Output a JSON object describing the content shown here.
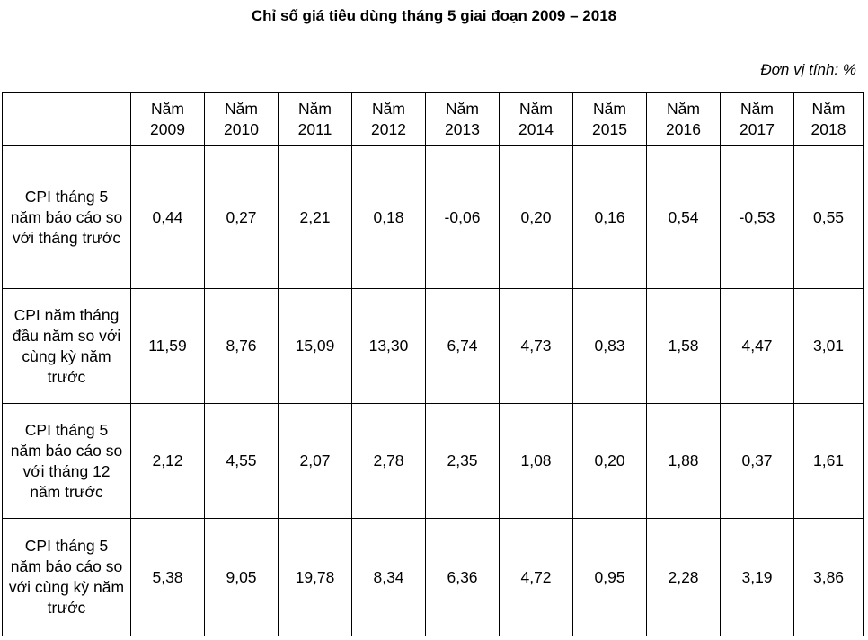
{
  "title": "Chỉ số giá tiêu dùng tháng 5 giai đoạn 2009 – 2018",
  "unit_note": "Đơn vị tính: %",
  "table": {
    "corner": "",
    "year_prefix": "Năm",
    "years": [
      "2009",
      "2010",
      "2011",
      "2012",
      "2013",
      "2014",
      "2015",
      "2016",
      "2017",
      "2018"
    ],
    "rows": [
      {
        "label": "CPI tháng 5 năm báo cáo so với tháng trước",
        "values": [
          "0,44",
          "0,27",
          "2,21",
          "0,18",
          "-0,06",
          "0,20",
          "0,16",
          "0,54",
          "-0,53",
          "0,55"
        ]
      },
      {
        "label": "CPI năm tháng đầu năm so với cùng kỳ năm trước",
        "values": [
          "11,59",
          "8,76",
          "15,09",
          "13,30",
          "6,74",
          "4,73",
          "0,83",
          "1,58",
          "4,47",
          "3,01"
        ]
      },
      {
        "label": "CPI tháng 5 năm báo cáo so với tháng 12 năm trước",
        "values": [
          "2,12",
          "4,55",
          "2,07",
          "2,78",
          "2,35",
          "1,08",
          "0,20",
          "1,88",
          "0,37",
          "1,61"
        ]
      },
      {
        "label": "CPI tháng 5 năm báo cáo so với cùng kỳ năm trước",
        "values": [
          "5,38",
          "9,05",
          "19,78",
          "8,34",
          "6,36",
          "4,72",
          "0,95",
          "2,28",
          "3,19",
          "3,86"
        ]
      }
    ]
  }
}
